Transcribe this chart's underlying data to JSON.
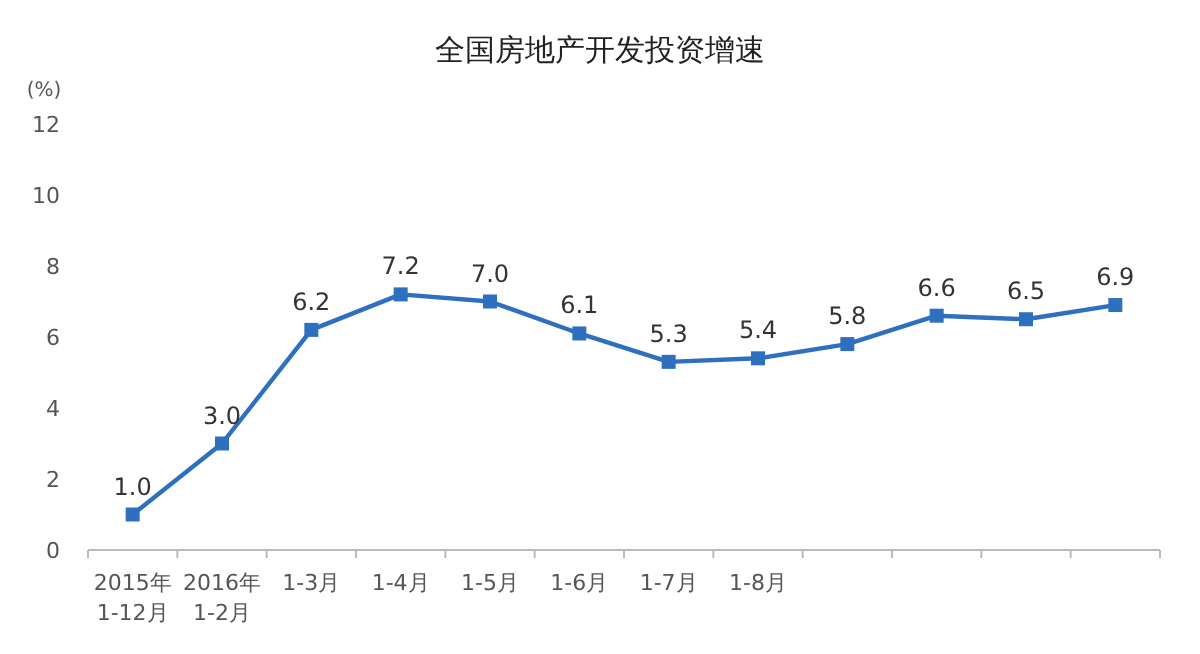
{
  "chart_data": {
    "type": "line",
    "title": "全国房地产开发投资增速",
    "ylabel": "(%)",
    "categories": [
      "2015年 1-12月",
      "2016年 1-2月",
      "1-3月",
      "1-4月",
      "1-5月",
      "1-6月",
      "1-7月",
      "1-8月",
      null,
      null,
      null,
      null
    ],
    "series": [
      {
        "color": "#2e6fc0",
        "values": [
          1.0,
          3.0,
          6.2,
          7.2,
          7.0,
          6.1,
          5.3,
          5.4,
          5.8,
          6.6,
          6.5,
          6.9
        ],
        "value_labels": [
          "1.0",
          "3.0",
          "6.2",
          "7.2",
          "7.0",
          "6.1",
          "5.3",
          "5.4",
          "5.8",
          "6.6",
          "6.5",
          "6.9"
        ]
      }
    ],
    "ylim": [
      0,
      12
    ],
    "yticks": [
      0,
      2,
      4,
      6,
      8,
      10,
      12
    ],
    "marker": "square"
  }
}
